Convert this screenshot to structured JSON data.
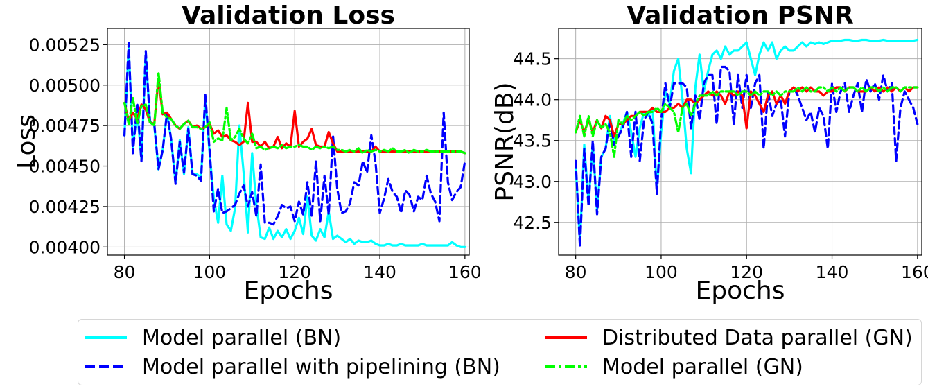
{
  "chart_data": [
    {
      "type": "line",
      "title": "Validation Loss",
      "xlabel": "Epochs",
      "ylabel": "Loss",
      "xlim": [
        76,
        161
      ],
      "ylim": [
        0.00395,
        0.00535
      ],
      "xticks": [
        "80",
        "100",
        "120",
        "140",
        "160"
      ],
      "xtick_values": [
        80,
        100,
        120,
        140,
        160
      ],
      "yticks": [
        "0.00400",
        "0.00425",
        "0.00450",
        "0.00475",
        "0.00500",
        "0.00525"
      ],
      "ytick_values": [
        0.004,
        0.00425,
        0.0045,
        0.00475,
        0.005,
        0.00525
      ],
      "grid": true,
      "x": [
        80,
        81,
        82,
        83,
        84,
        85,
        86,
        87,
        88,
        89,
        90,
        91,
        92,
        93,
        94,
        95,
        96,
        97,
        98,
        99,
        100,
        101,
        102,
        103,
        104,
        105,
        106,
        107,
        108,
        109,
        110,
        111,
        112,
        113,
        114,
        115,
        116,
        117,
        118,
        119,
        120,
        121,
        122,
        123,
        124,
        125,
        126,
        127,
        128,
        129,
        130,
        131,
        132,
        133,
        134,
        135,
        136,
        137,
        138,
        139,
        140,
        141,
        142,
        143,
        144,
        145,
        146,
        147,
        148,
        149,
        150,
        151,
        152,
        153,
        154,
        155,
        156,
        157,
        158,
        159,
        160
      ],
      "series": [
        {
          "name": "Model parallel (BN)",
          "values": [
            0.00469,
            0.00524,
            0.00462,
            0.00484,
            0.00454,
            0.00519,
            0.00478,
            0.00475,
            0.00448,
            0.0046,
            0.00483,
            0.00466,
            0.0044,
            0.00466,
            0.00445,
            0.00474,
            0.00445,
            0.00445,
            0.00443,
            0.00492,
            0.00458,
            0.0043,
            0.00415,
            0.00444,
            0.00414,
            0.0041,
            0.00424,
            0.00475,
            0.00446,
            0.00409,
            0.00458,
            0.00426,
            0.00406,
            0.00405,
            0.00412,
            0.00405,
            0.0041,
            0.00406,
            0.00411,
            0.00405,
            0.0041,
            0.00418,
            0.00408,
            0.00431,
            0.00407,
            0.00404,
            0.00411,
            0.00406,
            0.00422,
            0.00405,
            0.00407,
            0.00405,
            0.00403,
            0.00405,
            0.00402,
            0.00404,
            0.00403,
            0.00403,
            0.00404,
            0.00402,
            0.00401,
            0.00401,
            0.00402,
            0.00401,
            0.00401,
            0.00402,
            0.00401,
            0.00401,
            0.00401,
            0.00401,
            0.00402,
            0.00401,
            0.00401,
            0.00401,
            0.00401,
            0.00401,
            0.00401,
            0.00403,
            0.00401,
            0.004,
            0.004
          ]
        },
        {
          "name": "Model parallel with pipelining (BN)",
          "values": [
            0.00469,
            0.00526,
            0.00458,
            0.00489,
            0.00453,
            0.00521,
            0.00477,
            0.00476,
            0.00448,
            0.0046,
            0.00483,
            0.00466,
            0.00439,
            0.00465,
            0.00446,
            0.00473,
            0.00445,
            0.00444,
            0.00441,
            0.00494,
            0.0046,
            0.00422,
            0.00436,
            0.00421,
            0.00422,
            0.00424,
            0.00426,
            0.00433,
            0.00438,
            0.00425,
            0.00434,
            0.00419,
            0.00451,
            0.00415,
            0.00415,
            0.00414,
            0.00419,
            0.00426,
            0.00424,
            0.00425,
            0.00416,
            0.00428,
            0.0042,
            0.0044,
            0.00419,
            0.00453,
            0.00416,
            0.00444,
            0.0042,
            0.00469,
            0.00436,
            0.00421,
            0.00422,
            0.00427,
            0.0044,
            0.00438,
            0.00453,
            0.00446,
            0.00469,
            0.00452,
            0.00421,
            0.0043,
            0.00442,
            0.00434,
            0.00431,
            0.00421,
            0.00435,
            0.00432,
            0.00422,
            0.00431,
            0.00429,
            0.00444,
            0.00433,
            0.00428,
            0.00416,
            0.00483,
            0.0044,
            0.00429,
            0.00434,
            0.00437,
            0.00453
          ]
        },
        {
          "name": "Distributed Data parallel (GN)",
          "values": [
            0.00489,
            0.00478,
            0.00483,
            0.00479,
            0.00488,
            0.00485,
            0.00477,
            0.00476,
            0.00504,
            0.00482,
            0.00483,
            0.00479,
            0.00475,
            0.00473,
            0.00476,
            0.00478,
            0.00474,
            0.00475,
            0.00473,
            0.00474,
            0.00476,
            0.0047,
            0.00472,
            0.00468,
            0.00469,
            0.00466,
            0.00465,
            0.00463,
            0.00465,
            0.00489,
            0.00465,
            0.00465,
            0.00462,
            0.00465,
            0.00461,
            0.00462,
            0.00468,
            0.00461,
            0.00464,
            0.00462,
            0.00484,
            0.00462,
            0.00465,
            0.00467,
            0.00473,
            0.00463,
            0.00462,
            0.00462,
            0.00471,
            0.00464,
            0.00459,
            0.00459,
            0.00459,
            0.00459,
            0.00459,
            0.00459,
            0.00459,
            0.00459,
            0.00459,
            0.00462,
            0.00459,
            0.00459,
            0.00459,
            0.00459,
            0.00459,
            0.00459,
            0.00459,
            0.00459,
            0.00459,
            0.00459,
            0.00459,
            0.00459,
            0.00459,
            0.00459,
            0.00459,
            0.00459,
            0.00459,
            0.00459,
            0.00459,
            0.00459,
            0.00458
          ]
        },
        {
          "name": "Model parallel (GN)",
          "values": [
            0.00489,
            0.00476,
            0.00492,
            0.00476,
            0.00487,
            0.00488,
            0.00477,
            0.00475,
            0.00508,
            0.00483,
            0.0048,
            0.00479,
            0.00475,
            0.00473,
            0.00476,
            0.00478,
            0.00474,
            0.00474,
            0.00473,
            0.00474,
            0.00477,
            0.00465,
            0.00467,
            0.00466,
            0.00486,
            0.00466,
            0.00468,
            0.00473,
            0.00467,
            0.00464,
            0.0047,
            0.00461,
            0.00462,
            0.0046,
            0.00461,
            0.00462,
            0.00461,
            0.00463,
            0.00461,
            0.00462,
            0.00462,
            0.00463,
            0.00462,
            0.00462,
            0.0046,
            0.00462,
            0.00461,
            0.00462,
            0.00461,
            0.00462,
            0.0046,
            0.0046,
            0.00459,
            0.0046,
            0.00459,
            0.00461,
            0.00458,
            0.0046,
            0.00459,
            0.0046,
            0.00459,
            0.0046,
            0.00459,
            0.00461,
            0.00459,
            0.00459,
            0.0046,
            0.00458,
            0.0046,
            0.00459,
            0.00459,
            0.0046,
            0.00459,
            0.00459,
            0.00459,
            0.00459,
            0.00459,
            0.00459,
            0.00459,
            0.00459,
            0.00458
          ]
        }
      ]
    },
    {
      "type": "line",
      "title": "Validation PSNR",
      "xlabel": "Epochs",
      "ylabel": "PSNR(dB)",
      "xlim": [
        76,
        161
      ],
      "ylim": [
        42.1,
        44.87
      ],
      "xticks": [
        "80",
        "100",
        "120",
        "140",
        "160"
      ],
      "xtick_values": [
        80,
        100,
        120,
        140,
        160
      ],
      "yticks": [
        "42.5",
        "43.0",
        "43.5",
        "44.0",
        "44.5"
      ],
      "ytick_values": [
        42.5,
        43.0,
        43.5,
        44.0,
        44.5
      ],
      "grid": true,
      "x": [
        80,
        81,
        82,
        83,
        84,
        85,
        86,
        87,
        88,
        89,
        90,
        91,
        92,
        93,
        94,
        95,
        96,
        97,
        98,
        99,
        100,
        101,
        102,
        103,
        104,
        105,
        106,
        107,
        108,
        109,
        110,
        111,
        112,
        113,
        114,
        115,
        116,
        117,
        118,
        119,
        120,
        121,
        122,
        123,
        124,
        125,
        126,
        127,
        128,
        129,
        130,
        131,
        132,
        133,
        134,
        135,
        136,
        137,
        138,
        139,
        140,
        141,
        142,
        143,
        144,
        145,
        146,
        147,
        148,
        149,
        150,
        151,
        152,
        153,
        154,
        155,
        156,
        157,
        158,
        159,
        160
      ],
      "series": [
        {
          "name": "Model parallel (BN)",
          "values": [
            43.2,
            42.25,
            43.45,
            42.75,
            43.45,
            42.65,
            43.3,
            43.4,
            43.8,
            43.5,
            43.55,
            43.7,
            43.85,
            43.6,
            43.3,
            43.65,
            43.85,
            43.8,
            43.9,
            42.9,
            43.6,
            44.1,
            43.95,
            44.35,
            44.5,
            44.0,
            43.4,
            43.1,
            44.15,
            44.55,
            44.1,
            44.35,
            44.55,
            44.6,
            44.5,
            44.65,
            44.55,
            44.6,
            44.6,
            44.65,
            44.7,
            44.5,
            44.3,
            44.55,
            44.7,
            44.6,
            44.7,
            44.5,
            44.6,
            44.65,
            44.6,
            44.6,
            44.65,
            44.7,
            44.65,
            44.7,
            44.68,
            44.7,
            44.68,
            44.7,
            44.72,
            44.72,
            44.72,
            44.73,
            44.73,
            44.72,
            44.72,
            44.73,
            44.73,
            44.72,
            44.72,
            44.72,
            44.73,
            44.72,
            44.72,
            44.72,
            44.72,
            44.72,
            44.72,
            44.72,
            44.73
          ]
        },
        {
          "name": "Model parallel with pipelining (BN)",
          "values": [
            43.25,
            42.2,
            43.4,
            42.7,
            43.5,
            42.6,
            43.3,
            43.4,
            43.75,
            43.45,
            43.55,
            43.65,
            43.85,
            43.3,
            43.85,
            43.25,
            43.75,
            43.85,
            43.7,
            42.85,
            43.75,
            44.2,
            43.9,
            44.2,
            44.2,
            44.2,
            44.15,
            43.65,
            44.05,
            43.75,
            44.2,
            44.3,
            44.3,
            43.7,
            44.4,
            44.4,
            44.35,
            43.7,
            44.3,
            43.9,
            44.3,
            43.9,
            44.2,
            44.3,
            43.4,
            44.1,
            43.8,
            43.95,
            44.0,
            43.55,
            44.1,
            44.15,
            44.05,
            43.9,
            43.75,
            43.85,
            43.6,
            43.9,
            43.8,
            43.4,
            44.2,
            43.85,
            44.1,
            44.2,
            43.85,
            44.05,
            44.2,
            43.85,
            44.25,
            44.1,
            44.2,
            44.0,
            44.3,
            44.1,
            44.2,
            43.25,
            43.9,
            44.1,
            44.0,
            43.9,
            43.7
          ]
        },
        {
          "name": "Distributed Data parallel (GN)",
          "values": [
            43.6,
            43.75,
            43.6,
            43.75,
            43.6,
            43.75,
            43.65,
            43.8,
            43.75,
            43.55,
            43.7,
            43.7,
            43.75,
            43.8,
            43.8,
            43.85,
            43.85,
            43.85,
            43.9,
            43.85,
            43.85,
            43.85,
            43.9,
            43.9,
            43.95,
            43.9,
            44.0,
            44.0,
            43.95,
            44.0,
            44.05,
            44.1,
            44.05,
            44.1,
            44.05,
            43.95,
            44.1,
            44.05,
            44.1,
            44.05,
            43.65,
            44.1,
            44.05,
            43.95,
            43.85,
            44.05,
            44.1,
            43.95,
            44.05,
            43.95,
            44.1,
            44.15,
            44.1,
            44.15,
            44.1,
            44.15,
            44.1,
            44.1,
            44.05,
            44.1,
            44.1,
            44.15,
            44.15,
            44.1,
            44.15,
            44.15,
            44.1,
            44.1,
            44.1,
            44.15,
            44.1,
            44.15,
            44.1,
            44.15,
            44.1,
            44.15,
            44.1,
            44.15,
            44.1,
            44.15,
            44.15
          ]
        },
        {
          "name": "Model parallel (GN)",
          "values": [
            43.6,
            43.8,
            43.55,
            43.8,
            43.55,
            43.75,
            43.65,
            43.7,
            43.6,
            43.3,
            43.75,
            43.7,
            43.8,
            43.75,
            43.8,
            43.85,
            43.8,
            43.85,
            43.85,
            43.9,
            43.85,
            43.95,
            43.9,
            43.85,
            43.6,
            43.9,
            43.95,
            43.8,
            43.95,
            44.05,
            44.05,
            44.05,
            44.1,
            44.05,
            44.1,
            44.1,
            44.1,
            44.1,
            44.05,
            44.1,
            44.1,
            44.05,
            44.1,
            44.05,
            44.1,
            44.1,
            44.05,
            44.1,
            44.05,
            44.1,
            44.1,
            44.1,
            44.15,
            44.1,
            44.15,
            44.1,
            44.1,
            44.15,
            44.15,
            44.1,
            44.15,
            44.1,
            44.15,
            44.1,
            44.15,
            44.15,
            44.1,
            44.15,
            44.1,
            44.15,
            44.15,
            44.1,
            44.15,
            44.1,
            44.15,
            44.15,
            44.1,
            44.15,
            44.15,
            44.15,
            44.15
          ]
        }
      ]
    }
  ],
  "legend": {
    "placement": "bottom",
    "items": [
      {
        "label": "Model parallel (BN)",
        "color": "#00ffff",
        "style": "solid"
      },
      {
        "label": "Model parallel with pipelining (BN)",
        "color": "#0000ff",
        "style": "dashed"
      },
      {
        "label": "Distributed Data parallel (GN)",
        "color": "#ff0000",
        "style": "solid"
      },
      {
        "label": "Model parallel (GN)",
        "color": "#00ff00",
        "style": "dashdot"
      }
    ]
  },
  "series_styles": [
    {
      "color": "#00ffff",
      "dash": ""
    },
    {
      "color": "#0000ff",
      "dash": "10,6"
    },
    {
      "color": "#ff0000",
      "dash": ""
    },
    {
      "color": "#00ff00",
      "dash": "12,4,3,4"
    }
  ]
}
